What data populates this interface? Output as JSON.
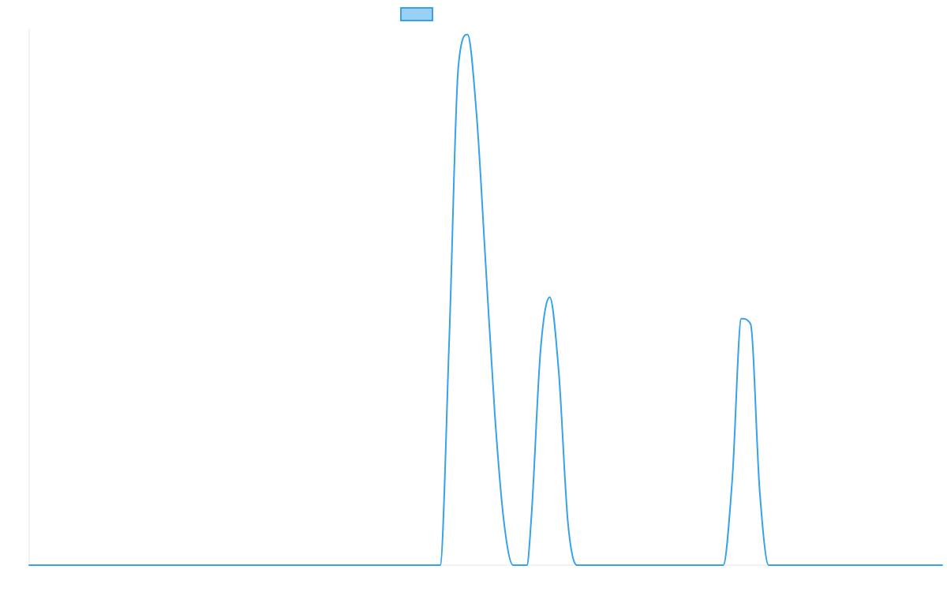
{
  "chart_data": {
    "type": "line",
    "title": "",
    "xlabel": "",
    "ylabel": "",
    "legend": {
      "position": "top-center",
      "entries": [
        {
          "label": "",
          "swatch_fill": "#9ad0f5",
          "swatch_stroke": "#36a2eb"
        }
      ]
    },
    "grid": false,
    "xlim": [
      0,
      100
    ],
    "ylim": [
      0,
      1
    ],
    "x": [
      0,
      45,
      46,
      47,
      48,
      49,
      50,
      51,
      52,
      53,
      54,
      54.5,
      55,
      56,
      57,
      58,
      59,
      60,
      61,
      62,
      63,
      64,
      76,
      77,
      78,
      79,
      80,
      81,
      82,
      100
    ],
    "series": [
      {
        "name": "",
        "color": "#36a2eb",
        "values": [
          0,
          0,
          0.42,
          0.93,
          0.99,
          0.84,
          0.56,
          0.28,
          0.08,
          0,
          0,
          0,
          0.09,
          0.4,
          0.5,
          0.36,
          0.08,
          0,
          0,
          0,
          0,
          0,
          0,
          0.16,
          0.46,
          0.45,
          0.14,
          0,
          0,
          0
        ]
      }
    ]
  }
}
